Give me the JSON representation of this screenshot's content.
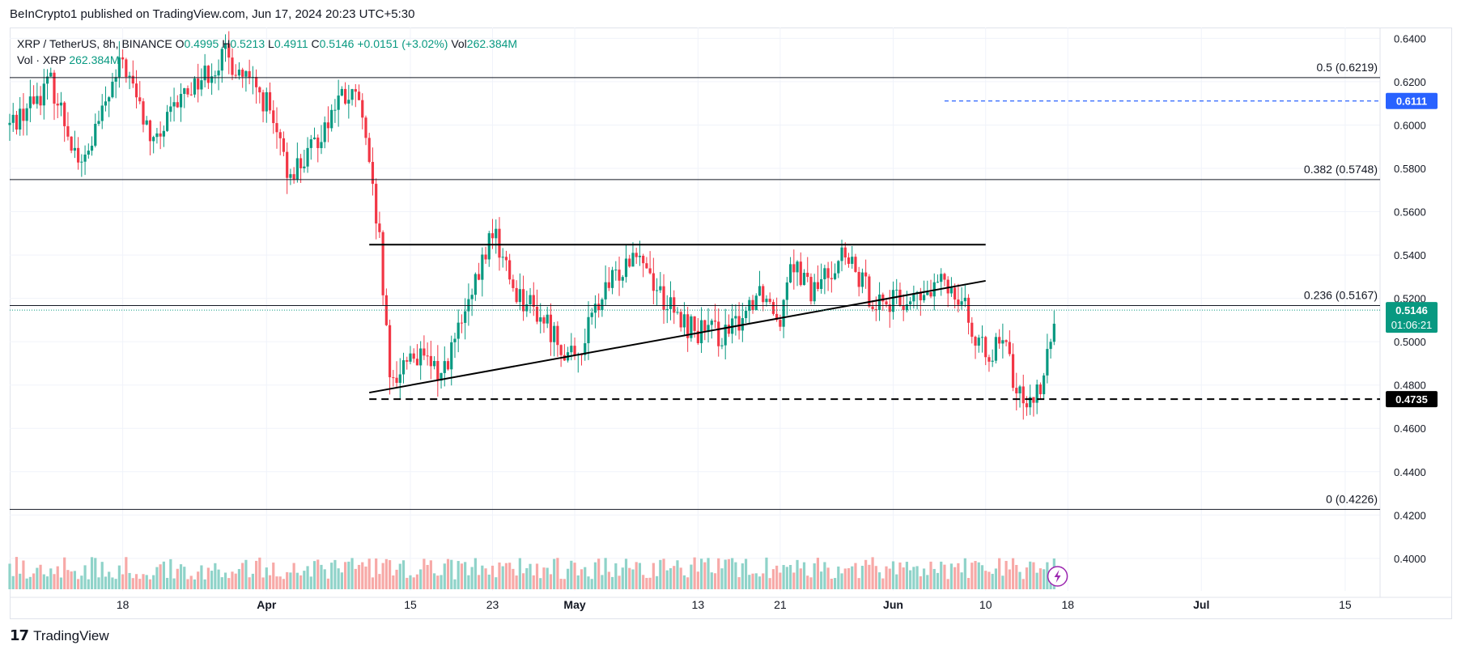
{
  "publisher_line": "BeInCrypto1 published on TradingView.com, Jun 17, 2024 20:23 UTC+5:30",
  "legend": {
    "symbol": "XRP / TetherUS, 8h, BINANCE",
    "o_label": "O",
    "o_value": "0.4995",
    "h_label": "H",
    "h_value": "0.5213",
    "l_label": "L",
    "l_value": "0.4911",
    "c_label": "C",
    "c_value": "0.5146",
    "change": "+0.0151 (+3.02%)",
    "vol_label": "Vol",
    "vol_value": "262.384M",
    "vol_line_label": "Vol · XRP",
    "vol_line_value": "262.384M"
  },
  "colors": {
    "up": "#089981",
    "down": "#f23645",
    "up_vol": "#8fd3c9",
    "down_vol": "#f7a9a7",
    "blue": "#2962ff",
    "grid": "#f0f3fa"
  },
  "footer_brand": "TradingView",
  "chart_data": {
    "type": "candlestick",
    "title": "XRP / TetherUS, 8h, BINANCE",
    "ylim": [
      0.385,
      0.645
    ],
    "y_ticks": [
      "0.6400",
      "0.6200",
      "0.6000",
      "0.5800",
      "0.5600",
      "0.5400",
      "0.5200",
      "0.5000",
      "0.4800",
      "0.4600",
      "0.4400",
      "0.4200",
      "0.4000"
    ],
    "x_ticks": [
      {
        "label": "18",
        "date": "2024-03-18"
      },
      {
        "label": "Apr",
        "date": "2024-04-01"
      },
      {
        "label": "15",
        "date": "2024-04-15"
      },
      {
        "label": "23",
        "date": "2024-04-23"
      },
      {
        "label": "May",
        "date": "2024-05-01"
      },
      {
        "label": "13",
        "date": "2024-05-13"
      },
      {
        "label": "21",
        "date": "2024-05-21"
      },
      {
        "label": "Jun",
        "date": "2024-06-01"
      },
      {
        "label": "10",
        "date": "2024-06-10"
      },
      {
        "label": "18",
        "date": "2024-06-18"
      },
      {
        "label": "Jul",
        "date": "2024-07-01"
      },
      {
        "label": "15",
        "date": "2024-07-15"
      }
    ],
    "fib_levels": [
      {
        "label": "0.5 (0.6219)",
        "value": 0.6219
      },
      {
        "label": "0.382 (0.5748)",
        "value": 0.5748
      },
      {
        "label": "0.236 (0.5167)",
        "value": 0.5167
      },
      {
        "label": "0 (0.4226)",
        "value": 0.4226
      }
    ],
    "price_badges": [
      {
        "label": "0.6111",
        "value": 0.6111,
        "style": "blue"
      },
      {
        "label": "0.5146",
        "sub": "01:06:21",
        "value": 0.5146,
        "style": "green"
      },
      {
        "label": "0.4735",
        "value": 0.4735,
        "style": "black"
      }
    ],
    "resistance": {
      "value": 0.5448,
      "from": "2024-04-11",
      "to": "2024-06-10"
    },
    "rising_trendline": {
      "from": {
        "date": "2024-04-11",
        "value": 0.4765
      },
      "to": {
        "date": "2024-06-10",
        "value": 0.5281
      }
    },
    "support_dashed": {
      "value": 0.4735,
      "from": "2024-04-11"
    },
    "alert_line": {
      "value": 0.6111,
      "from": "2024-06-06"
    },
    "anchors": [
      {
        "date": "2024-03-07",
        "value": 0.6
      },
      {
        "date": "2024-03-11",
        "value": 0.62
      },
      {
        "date": "2024-03-14",
        "value": 0.58
      },
      {
        "date": "2024-03-18",
        "value": 0.63
      },
      {
        "date": "2024-03-21",
        "value": 0.59
      },
      {
        "date": "2024-03-24",
        "value": 0.615
      },
      {
        "date": "2024-03-28",
        "value": 0.632
      },
      {
        "date": "2024-04-01",
        "value": 0.61
      },
      {
        "date": "2024-04-03",
        "value": 0.578
      },
      {
        "date": "2024-04-05",
        "value": 0.585
      },
      {
        "date": "2024-04-08",
        "value": 0.612
      },
      {
        "date": "2024-04-10",
        "value": 0.612
      },
      {
        "date": "2024-04-12",
        "value": 0.545
      },
      {
        "date": "2024-04-13",
        "value": 0.48
      },
      {
        "date": "2024-04-15",
        "value": 0.495
      },
      {
        "date": "2024-04-18",
        "value": 0.485
      },
      {
        "date": "2024-04-21",
        "value": 0.52
      },
      {
        "date": "2024-04-23",
        "value": 0.552
      },
      {
        "date": "2024-04-25",
        "value": 0.525
      },
      {
        "date": "2024-04-28",
        "value": 0.51
      },
      {
        "date": "2024-05-01",
        "value": 0.49
      },
      {
        "date": "2024-05-03",
        "value": 0.515
      },
      {
        "date": "2024-05-05",
        "value": 0.53
      },
      {
        "date": "2024-05-07",
        "value": 0.545
      },
      {
        "date": "2024-05-09",
        "value": 0.525
      },
      {
        "date": "2024-05-11",
        "value": 0.51
      },
      {
        "date": "2024-05-13",
        "value": 0.505
      },
      {
        "date": "2024-05-16",
        "value": 0.503
      },
      {
        "date": "2024-05-19",
        "value": 0.525
      },
      {
        "date": "2024-05-21",
        "value": 0.512
      },
      {
        "date": "2024-05-22",
        "value": 0.54
      },
      {
        "date": "2024-05-24",
        "value": 0.522
      },
      {
        "date": "2024-05-27",
        "value": 0.54
      },
      {
        "date": "2024-05-30",
        "value": 0.52
      },
      {
        "date": "2024-06-01",
        "value": 0.518
      },
      {
        "date": "2024-06-04",
        "value": 0.52
      },
      {
        "date": "2024-06-06",
        "value": 0.528
      },
      {
        "date": "2024-06-08",
        "value": 0.52
      },
      {
        "date": "2024-06-09",
        "value": 0.496
      },
      {
        "date": "2024-06-12",
        "value": 0.497
      },
      {
        "date": "2024-06-13",
        "value": 0.475
      },
      {
        "date": "2024-06-15",
        "value": 0.476
      },
      {
        "date": "2024-06-16",
        "value": 0.491
      },
      {
        "date": "2024-06-17",
        "value": 0.5146
      }
    ]
  }
}
